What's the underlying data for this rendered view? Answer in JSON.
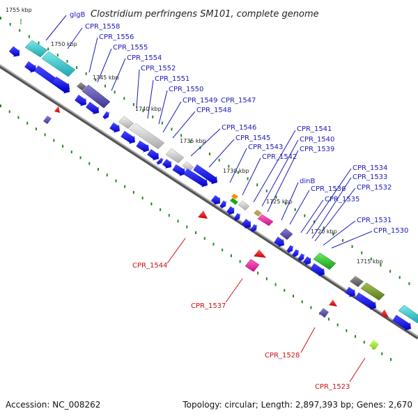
{
  "title": "Clostridium perfringens SM101, complete genome",
  "footer": {
    "accession": "Accession: NC_008262",
    "topology": "Topology: circular; Length: 2,897,393 bp; Genes: 2,670"
  },
  "ticks": [
    "1755 kbp",
    "1750 kbp",
    "1745 kbp",
    "1740 kbp",
    "1735 kbp",
    "1730 kbp",
    "1725 kbp",
    "1720 kbp",
    "1715 kbp"
  ],
  "top_labels": [
    "glgB",
    "CPR_1558",
    "CPR_1556",
    "CPR_1555",
    "CPR_1554",
    "CPR_1552",
    "CPR_1551",
    "CPR_1550",
    "CPR_1549",
    "CPR_1547",
    "CPR_1548",
    "CPR_1546",
    "CPR_1545",
    "CPR_1543",
    "CPR_1542",
    "CPR_1541",
    "CPR_1540",
    "CPR_1539",
    "dinB",
    "CPR_1536",
    "CPR_1535",
    "CPR_1534",
    "CPR_1533",
    "CPR_1532",
    "CPR_1531",
    "CPR_1530"
  ],
  "bottom_labels": [
    "CPR_1544",
    "CPR_1537",
    "CPR_1528",
    "CPR_1523"
  ],
  "colors": {
    "backbone": "#8a8a8a",
    "dots": "#1f8a1f",
    "forward_gene": "#1111ee",
    "reverse_gene": "#ee1111",
    "top_label": "#1a1ab8",
    "bottom_label": "#cc1111"
  }
}
